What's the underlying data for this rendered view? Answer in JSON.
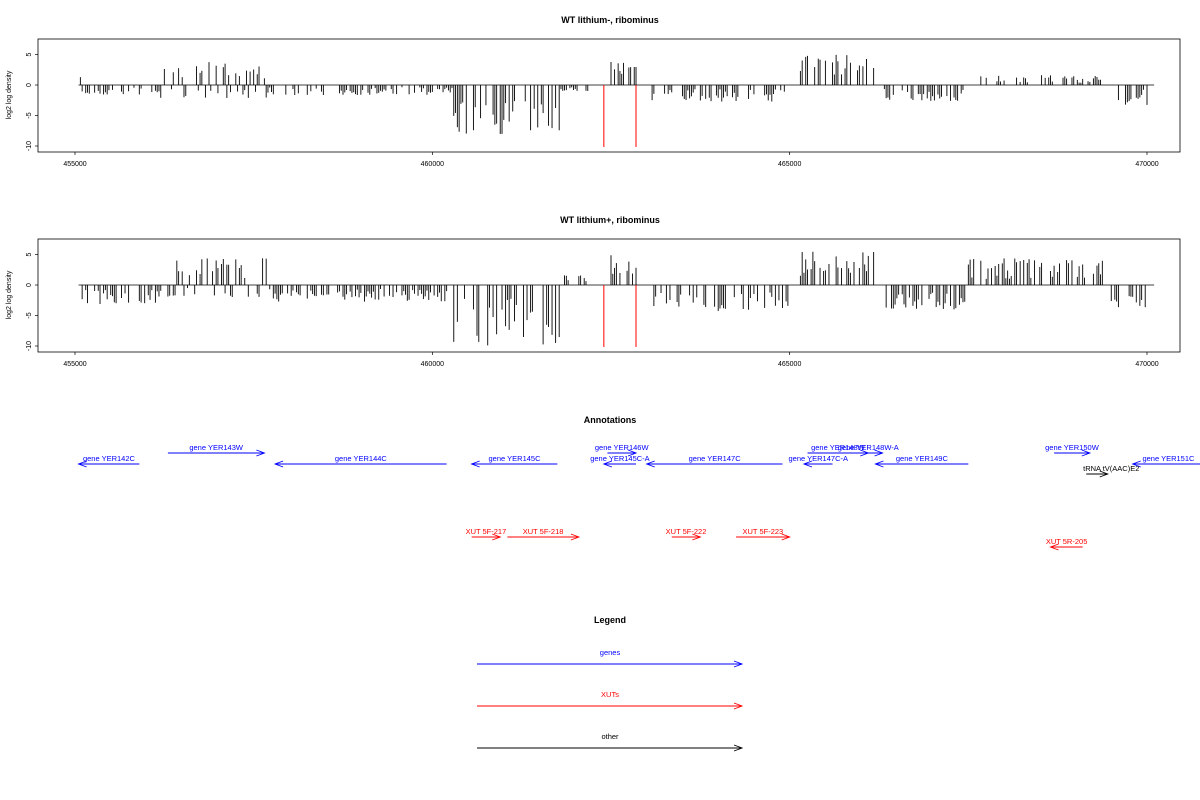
{
  "chart_data": [
    {
      "type": "bar",
      "title": "WT lithium-, ribominus",
      "ylabel": "log2 log density",
      "xlim": [
        455000,
        470000
      ],
      "ylim": [
        -10,
        5
      ],
      "x_ticks": [
        "455000",
        "460000",
        "465000",
        "470000"
      ],
      "y_ticks": [
        "5",
        "0",
        "-5",
        "-10"
      ],
      "grid": false,
      "density_profile": {
        "bin_width": 100,
        "series_color": "#000000",
        "segments": [
          {
            "x": [
              455050,
              455100
            ],
            "values": [
              3,
              -3
            ]
          },
          {
            "x": [
              455100,
              456200
            ],
            "values": [
              -1.5
            ]
          },
          {
            "x": [
              456200,
              457700
            ],
            "values": [
              3.5,
              -2
            ]
          },
          {
            "x": [
              457700,
              460300
            ],
            "values": [
              -1.5
            ]
          },
          {
            "x": [
              460300,
              461800
            ],
            "values": [
              -7.5
            ]
          },
          {
            "x": [
              461800,
              462200
            ],
            "values": [
              -1
            ]
          },
          {
            "x": [
              462500,
              462900
            ],
            "values": [
              4
            ]
          },
          {
            "x": [
              463000,
              465000
            ],
            "values": [
              -2.5
            ]
          },
          {
            "x": [
              465150,
              466200
            ],
            "values": [
              4.5
            ]
          },
          {
            "x": [
              466300,
              467500
            ],
            "values": [
              -2.5
            ]
          },
          {
            "x": [
              467500,
              469400
            ],
            "values": [
              1.5
            ]
          },
          {
            "x": [
              469500,
              470100
            ],
            "values": [
              -3
            ]
          }
        ]
      },
      "markers": [
        {
          "x": 462400,
          "y": -10,
          "color": "#ff0000"
        },
        {
          "x": 462850,
          "y": -10,
          "color": "#ff0000"
        }
      ]
    },
    {
      "type": "bar",
      "title": "WT lithium+, ribominus",
      "ylabel": "log2 log density",
      "xlim": [
        455000,
        470000
      ],
      "ylim": [
        -10,
        5
      ],
      "x_ticks": [
        "455000",
        "460000",
        "465000",
        "470000"
      ],
      "y_ticks": [
        "5",
        "0",
        "-5",
        "-10"
      ],
      "grid": false,
      "density_profile": {
        "bin_width": 100,
        "series_color": "#000000",
        "segments": [
          {
            "x": [
              455050,
              455100
            ],
            "values": [
              3,
              -5
            ]
          },
          {
            "x": [
              455100,
              456200
            ],
            "values": [
              -3
            ]
          },
          {
            "x": [
              456200,
              457700
            ],
            "values": [
              4,
              -2
            ]
          },
          {
            "x": [
              457700,
              460300
            ],
            "values": [
              -2.5
            ]
          },
          {
            "x": [
              460300,
              461800
            ],
            "values": [
              -9
            ]
          },
          {
            "x": [
              461800,
              462200
            ],
            "values": [
              1.5
            ]
          },
          {
            "x": [
              462500,
              462900
            ],
            "values": [
              4.5
            ]
          },
          {
            "x": [
              463000,
              465000
            ],
            "values": [
              -4
            ]
          },
          {
            "x": [
              465150,
              466200
            ],
            "values": [
              5
            ]
          },
          {
            "x": [
              466300,
              467500
            ],
            "values": [
              -4
            ]
          },
          {
            "x": [
              467500,
              469400
            ],
            "values": [
              4
            ]
          },
          {
            "x": [
              469500,
              470100
            ],
            "values": [
              -4
            ]
          }
        ]
      },
      "markers": [
        {
          "x": 462400,
          "y": -10,
          "color": "#ff0000"
        },
        {
          "x": 462850,
          "y": -10,
          "color": "#ff0000"
        }
      ]
    }
  ],
  "annotations": {
    "title": "Annotations",
    "genes": [
      {
        "label": "gene YER142C",
        "start": 455900,
        "end": 455050,
        "row": 1
      },
      {
        "label": "gene YER143W",
        "start": 456300,
        "end": 457650,
        "row": 0
      },
      {
        "label": "gene YER144C",
        "start": 460200,
        "end": 457800,
        "row": 1
      },
      {
        "label": "gene YER145C",
        "start": 461750,
        "end": 460550,
        "row": 1
      },
      {
        "label": "gene YER146W",
        "start": 462450,
        "end": 462850,
        "row": 0
      },
      {
        "label": "gene YER145C-A",
        "start": 462850,
        "end": 462400,
        "row": 1
      },
      {
        "label": "gene YER147C",
        "start": 464900,
        "end": 463000,
        "row": 1
      },
      {
        "label": "gene YER148W",
        "start": 465250,
        "end": 466100,
        "row": 0
      },
      {
        "label": "gene YER148W-A",
        "start": 465900,
        "end": 466300,
        "row": 0
      },
      {
        "label": "gene YER147C-A",
        "start": 465600,
        "end": 465200,
        "row": 1
      },
      {
        "label": "gene YER149C",
        "start": 467500,
        "end": 466200,
        "row": 1
      },
      {
        "label": "gene YER150W",
        "start": 468700,
        "end": 469200,
        "row": 0
      },
      {
        "label": "gene YER151C",
        "start": 471500,
        "end": 469800,
        "row": 1,
        "label_x": 470300
      }
    ],
    "xuts": [
      {
        "label": "XUT 5F-217",
        "start": 460550,
        "end": 460950,
        "row": 3
      },
      {
        "label": "XUT 5F-218",
        "start": 461050,
        "end": 462050,
        "row": 3
      },
      {
        "label": "XUT 5F-222",
        "start": 463350,
        "end": 463750,
        "row": 3
      },
      {
        "label": "XUT 5F-223",
        "start": 464250,
        "end": 465000,
        "row": 3
      },
      {
        "label": "XUT 5R-205",
        "start": 469100,
        "end": 468650,
        "row": 4
      }
    ],
    "other": [
      {
        "label": "tRNA tV(AAC)E2",
        "start": 469150,
        "end": 469450,
        "row": 2,
        "label_x": 469500
      }
    ]
  },
  "legend": {
    "title": "Legend",
    "items": [
      {
        "label": "genes",
        "color": "#0000ff"
      },
      {
        "label": "XUTs",
        "color": "#ff0000"
      },
      {
        "label": "other",
        "color": "#000000"
      }
    ]
  },
  "colors": {
    "genes": "#0000ff",
    "xuts": "#ff0000",
    "other": "#000000",
    "marker": "#ff0000"
  }
}
